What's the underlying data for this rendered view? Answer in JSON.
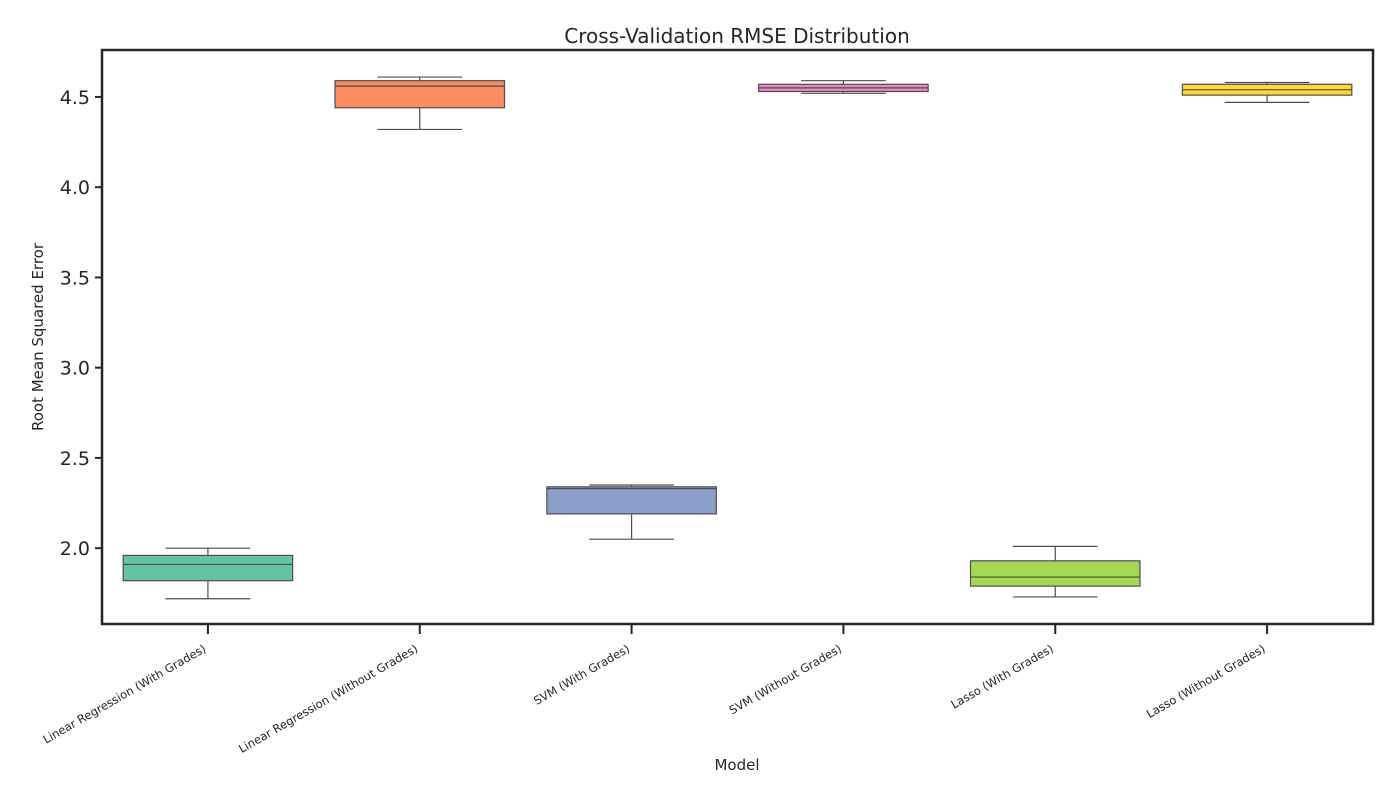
{
  "chart_data": {
    "type": "box",
    "title": "Cross-Validation RMSE Distribution",
    "xlabel": "Model",
    "ylabel": "Root Mean Squared Error",
    "ylim": [
      1.58,
      4.76
    ],
    "yticks": [
      2.0,
      2.5,
      3.0,
      3.5,
      4.0,
      4.5
    ],
    "ytick_labels": [
      "2.0",
      "2.5",
      "3.0",
      "3.5",
      "4.0",
      "4.5"
    ],
    "grid": false,
    "categories": [
      "Linear Regression (With Grades)",
      "Linear Regression (Without Grades)",
      "SVM (With Grades)",
      "SVM (Without Grades)",
      "Lasso (With Grades)",
      "Lasso (Without Grades)"
    ],
    "series": [
      {
        "category": "Linear Regression (With Grades)",
        "whisker_low": 1.72,
        "q1": 1.82,
        "median": 1.91,
        "q3": 1.96,
        "whisker_high": 2.0,
        "color": "#66c2a5"
      },
      {
        "category": "Linear Regression (Without Grades)",
        "whisker_low": 4.32,
        "q1": 4.44,
        "median": 4.56,
        "q3": 4.59,
        "whisker_high": 4.61,
        "color": "#fc8d62"
      },
      {
        "category": "SVM (With Grades)",
        "whisker_low": 2.05,
        "q1": 2.19,
        "median": 2.33,
        "q3": 2.34,
        "whisker_high": 2.35,
        "color": "#8da0cb"
      },
      {
        "category": "SVM (Without Grades)",
        "whisker_low": 4.52,
        "q1": 4.53,
        "median": 4.55,
        "q3": 4.57,
        "whisker_high": 4.59,
        "color": "#e78ac3"
      },
      {
        "category": "Lasso (With Grades)",
        "whisker_low": 1.73,
        "q1": 1.79,
        "median": 1.84,
        "q3": 1.93,
        "whisker_high": 2.01,
        "color": "#a6d854"
      },
      {
        "category": "Lasso (Without Grades)",
        "whisker_low": 4.47,
        "q1": 4.51,
        "median": 4.54,
        "q3": 4.57,
        "whisker_high": 4.58,
        "color": "#ffd92f"
      }
    ]
  }
}
